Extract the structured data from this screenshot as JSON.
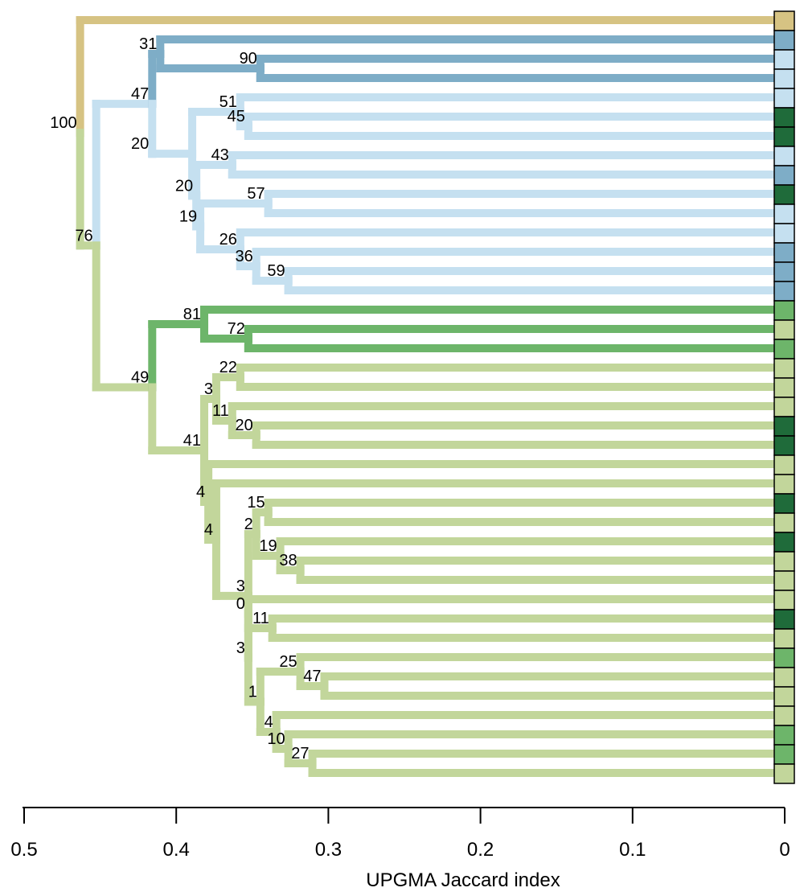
{
  "colors": {
    "outgroup_tan": "#d6c383",
    "blue_dark": "#7eadc7",
    "blue_light": "#c5e0f0",
    "green_mid": "#6db56a",
    "green_light": "#c2d69b",
    "green_dark": "#1f6b3a"
  },
  "axis": {
    "label": "UPGMA Jaccard index",
    "ticks": [
      "0.5",
      "0.4",
      "0.3",
      "0.2",
      "0.1",
      "0"
    ],
    "tick_values": [
      0.5,
      0.4,
      0.3,
      0.2,
      0.1,
      0
    ],
    "range": [
      0.5,
      0
    ]
  },
  "leaf_colors": [
    "outgroup_tan",
    "blue_dark",
    "blue_light",
    "blue_light",
    "blue_light",
    "green_dark",
    "green_dark",
    "blue_light",
    "blue_dark",
    "green_dark",
    "blue_light",
    "blue_light",
    "blue_dark",
    "blue_dark",
    "blue_dark",
    "green_mid",
    "green_light",
    "green_mid",
    "green_light",
    "green_light",
    "green_light",
    "green_dark",
    "green_dark",
    "green_light",
    "green_light",
    "green_dark",
    "green_light",
    "green_dark",
    "green_light",
    "green_light",
    "green_light",
    "green_dark",
    "green_light",
    "green_mid",
    "green_light",
    "green_light",
    "green_light",
    "green_mid",
    "green_mid",
    "green_light"
  ],
  "tree": {
    "h": 0.4632,
    "s": "100",
    "c": "blue_light",
    "ch": [
      {
        "leaf": 0,
        "c": "outgroup_tan"
      },
      {
        "h": 0.4526,
        "s": "76",
        "c": "green_light",
        "ch": [
          {
            "h": 0.4526,
            "s": "",
            "c": "blue_light",
            "sc": "blue_light",
            "ch": [
              {
                "h": 0.4158,
                "s": "47",
                "c": "blue_light",
                "ch": [
                  {
                    "h": 0.4105,
                    "s": "31",
                    "c": "blue_dark",
                    "ch": [
                      {
                        "leaf": 1,
                        "c": "blue_dark"
                      },
                      {
                        "h": 0.3447,
                        "s": "90",
                        "c": "blue_dark",
                        "ch": [
                          {
                            "leaf": 2,
                            "c": "blue_dark"
                          },
                          {
                            "leaf": 3,
                            "c": "blue_dark"
                          }
                        ]
                      }
                    ]
                  },
                  {
                    "h": 0.4158,
                    "s": "20",
                    "c": "blue_light",
                    "ch": [
                      {
                        "h": 0.3895,
                        "s": "",
                        "c": "blue_light",
                        "ch": [
                          {
                            "h": 0.3579,
                            "s": "51",
                            "c": "blue_light",
                            "ch": [
                              {
                                "leaf": 4,
                                "c": "blue_light"
                              },
                              {
                                "h": 0.3526,
                                "s": "45",
                                "c": "blue_light",
                                "ch": [
                                  {
                                    "leaf": 5,
                                    "c": "blue_light"
                                  },
                                  {
                                    "leaf": 6,
                                    "c": "blue_light"
                                  }
                                ]
                              }
                            ]
                          },
                          {
                            "h": 0.3868,
                            "s": "20",
                            "c": "blue_light",
                            "ch": [
                              {
                                "h": 0.3632,
                                "s": "43",
                                "c": "blue_light",
                                "ch": [
                                  {
                                    "leaf": 7,
                                    "c": "blue_light"
                                  },
                                  {
                                    "leaf": 8,
                                    "c": "blue_light"
                                  }
                                ]
                              },
                              {
                                "h": 0.3842,
                                "s": "19",
                                "c": "blue_light",
                                "ch": [
                                  {
                                    "h": 0.3395,
                                    "s": "57",
                                    "c": "blue_light",
                                    "ch": [
                                      {
                                        "leaf": 9,
                                        "c": "blue_light"
                                      },
                                      {
                                        "leaf": 10,
                                        "c": "blue_light"
                                      }
                                    ]
                                  },
                                  {
                                    "h": 0.3579,
                                    "s": "26",
                                    "c": "blue_light",
                                    "ch": [
                                      {
                                        "leaf": 11,
                                        "c": "blue_light"
                                      },
                                      {
                                        "h": 0.3474,
                                        "s": "36",
                                        "c": "blue_light",
                                        "ch": [
                                          {
                                            "leaf": 12,
                                            "c": "blue_light"
                                          },
                                          {
                                            "h": 0.3263,
                                            "s": "59",
                                            "c": "blue_light",
                                            "ch": [
                                              {
                                                "leaf": 13,
                                                "c": "blue_light"
                                              },
                                              {
                                                "leaf": 14,
                                                "c": "blue_light"
                                              }
                                            ]
                                          }
                                        ]
                                      }
                                    ]
                                  }
                                ]
                              }
                            ]
                          }
                        ]
                      }
                    ]
                  }
                ]
              }
            ]
          },
          {
            "h": 0.4158,
            "s": "49",
            "c": "green_light",
            "ch": [
              {
                "h": 0.3816,
                "s": "81",
                "c": "green_mid",
                "ch": [
                  {
                    "leaf": 15,
                    "c": "green_mid"
                  },
                  {
                    "h": 0.3526,
                    "s": "72",
                    "c": "green_mid",
                    "ch": [
                      {
                        "leaf": 16,
                        "c": "green_mid"
                      },
                      {
                        "leaf": 17,
                        "c": "green_mid"
                      }
                    ]
                  }
                ]
              },
              {
                "h": 0.3816,
                "s": "41",
                "c": "green_light",
                "ch": [
                  {
                    "h": 0.3737,
                    "s": "3",
                    "c": "green_light",
                    "ch": [
                      {
                        "h": 0.3579,
                        "s": "22",
                        "c": "green_light",
                        "ch": [
                          {
                            "leaf": 18,
                            "c": "green_light"
                          },
                          {
                            "leaf": 19,
                            "c": "green_light"
                          }
                        ]
                      },
                      {
                        "h": 0.3632,
                        "s": "11",
                        "c": "green_light",
                        "ch": [
                          {
                            "leaf": 20,
                            "c": "green_light"
                          },
                          {
                            "h": 0.3474,
                            "s": "20",
                            "c": "green_light",
                            "ch": [
                              {
                                "leaf": 21,
                                "c": "green_light"
                              },
                              {
                                "leaf": 22,
                                "c": "green_light"
                              }
                            ]
                          }
                        ]
                      }
                    ]
                  },
                  {
                    "h": 0.3789,
                    "s": "4",
                    "c": "green_light",
                    "ch": [
                      {
                        "leaf": 23,
                        "c": "green_light"
                      },
                      {
                        "h": 0.3737,
                        "s": "4",
                        "c": "green_light",
                        "ch": [
                          {
                            "leaf": 24,
                            "c": "green_light"
                          },
                          {
                            "h": 0.3526,
                            "s": "3",
                            "c": "green_light",
                            "ch": [
                              {
                                "h": 0.3474,
                                "s": "2",
                                "c": "green_light",
                                "ch": [
                                  {
                                    "h": 0.3395,
                                    "s": "15",
                                    "c": "green_light",
                                    "ch": [
                                      {
                                        "leaf": 25,
                                        "c": "green_light"
                                      },
                                      {
                                        "leaf": 26,
                                        "c": "green_light"
                                      }
                                    ]
                                  },
                                  {
                                    "h": 0.3316,
                                    "s": "19",
                                    "c": "green_light",
                                    "ch": [
                                      {
                                        "leaf": 27,
                                        "c": "green_light"
                                      },
                                      {
                                        "h": 0.3184,
                                        "s": "38",
                                        "c": "green_light",
                                        "ch": [
                                          {
                                            "leaf": 28,
                                            "c": "green_light"
                                          },
                                          {
                                            "leaf": 29,
                                            "c": "green_light"
                                          }
                                        ]
                                      }
                                    ]
                                  }
                                ]
                              },
                              {
                                "h": 0.3526,
                                "s": "3",
                                "c": "green_light",
                                "ch": [
                                  {
                                    "h": 0.3526,
                                    "s": "0",
                                    "c": "green_light",
                                    "ch": [
                                      {
                                        "leaf": 30,
                                        "c": "green_light"
                                      },
                                      {
                                        "h": 0.3368,
                                        "s": "11",
                                        "c": "green_light",
                                        "ch": [
                                          {
                                            "leaf": 31,
                                            "c": "green_light"
                                          },
                                          {
                                            "leaf": 32,
                                            "c": "green_light"
                                          }
                                        ]
                                      }
                                    ]
                                  },
                                  {
                                    "h": 0.3447,
                                    "s": "1",
                                    "c": "green_light",
                                    "ch": [
                                      {
                                        "h": 0.3184,
                                        "s": "25",
                                        "c": "green_light",
                                        "ch": [
                                          {
                                            "leaf": 33,
                                            "c": "green_light"
                                          },
                                          {
                                            "h": 0.3026,
                                            "s": "47",
                                            "c": "green_light",
                                            "ch": [
                                              {
                                                "leaf": 34,
                                                "c": "green_light"
                                              },
                                              {
                                                "leaf": 35,
                                                "c": "green_light"
                                              }
                                            ]
                                          }
                                        ]
                                      },
                                      {
                                        "h": 0.3342,
                                        "s": "4",
                                        "c": "green_light",
                                        "ch": [
                                          {
                                            "leaf": 36,
                                            "c": "green_light"
                                          },
                                          {
                                            "h": 0.3263,
                                            "s": "10",
                                            "c": "green_light",
                                            "ch": [
                                              {
                                                "leaf": 37,
                                                "c": "green_light"
                                              },
                                              {
                                                "h": 0.3105,
                                                "s": "27",
                                                "c": "green_light",
                                                "ch": [
                                                  {
                                                    "leaf": 38,
                                                    "c": "green_light"
                                                  },
                                                  {
                                                    "leaf": 39,
                                                    "c": "green_light"
                                                  }
                                                ]
                                              }
                                            ]
                                          }
                                        ]
                                      }
                                    ]
                                  }
                                ]
                              }
                            ]
                          }
                        ]
                      }
                    ]
                  }
                ]
              }
            ]
          }
        ]
      }
    ]
  }
}
